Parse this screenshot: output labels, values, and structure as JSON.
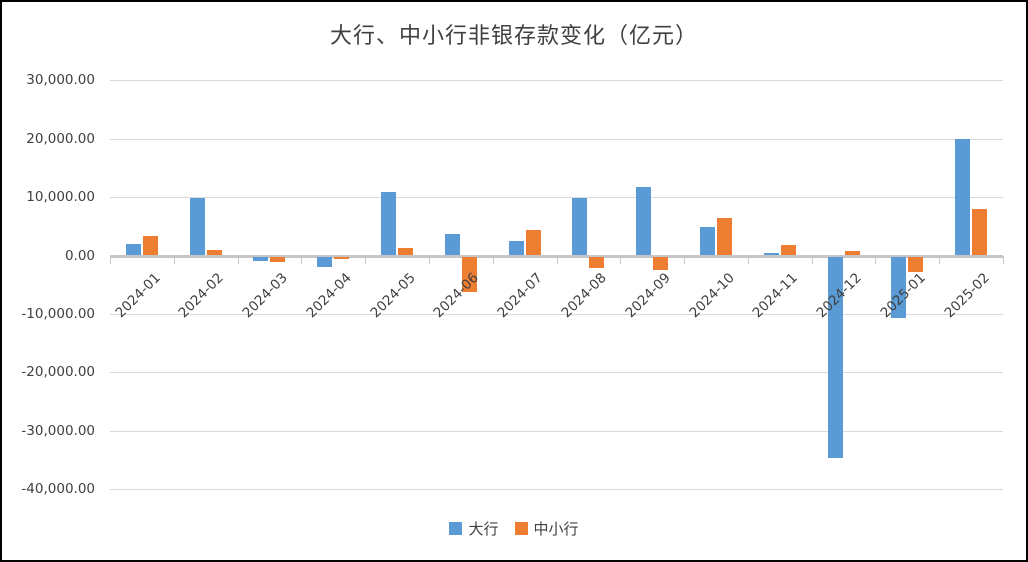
{
  "chart_data": {
    "type": "bar",
    "title": "大行、中小行非银存款变化（亿元）",
    "categories": [
      "2024-01",
      "2024-02",
      "2024-03",
      "2024-04",
      "2024-05",
      "2024-06",
      "2024-07",
      "2024-08",
      "2024-09",
      "2024-10",
      "2024-11",
      "2024-12",
      "2025-01",
      "2025-02"
    ],
    "series": [
      {
        "name": "大行",
        "color": "#5B9BD5",
        "values": [
          2000,
          9800,
          -700,
          -1800,
          10800,
          3600,
          2400,
          9800,
          11700,
          4800,
          500,
          -34500,
          -10600,
          20000
        ]
      },
      {
        "name": "中小行",
        "color": "#ED7D31",
        "values": [
          3300,
          1000,
          -900,
          -400,
          1200,
          -6000,
          4300,
          -2000,
          -2300,
          6400,
          1800,
          800,
          -2700,
          8000
        ]
      }
    ],
    "xlabel": "",
    "ylabel": "",
    "ylim": [
      -40000,
      30000
    ],
    "ytick_step": 10000,
    "ytick_labels": [
      "30,000.00",
      "20,000.00",
      "10,000.00",
      "0.00",
      "-10,000.00",
      "-20,000.00",
      "-30,000.00",
      "-40,000.00"
    ],
    "grid": true,
    "legend_position": "bottom",
    "colors": {
      "gridline": "#D9D9D9",
      "zero_axis": "#C6C6C6",
      "text": "#404040",
      "background": "#ffffff",
      "frame_border": "#000000"
    }
  }
}
